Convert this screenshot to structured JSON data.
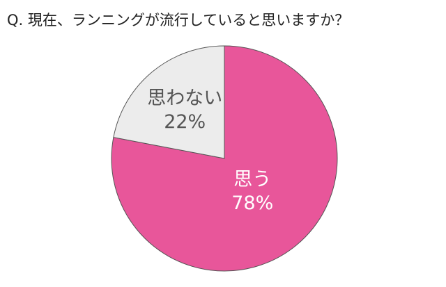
{
  "chart_data": {
    "type": "pie",
    "title": "Q. 現在、ランニングが流行していると思いますか？",
    "categories": [
      "思う",
      "思わない"
    ],
    "values": [
      78,
      22
    ],
    "value_labels": [
      "78%",
      "22%"
    ],
    "colors": [
      "#e8569a",
      "#ececec"
    ]
  }
}
